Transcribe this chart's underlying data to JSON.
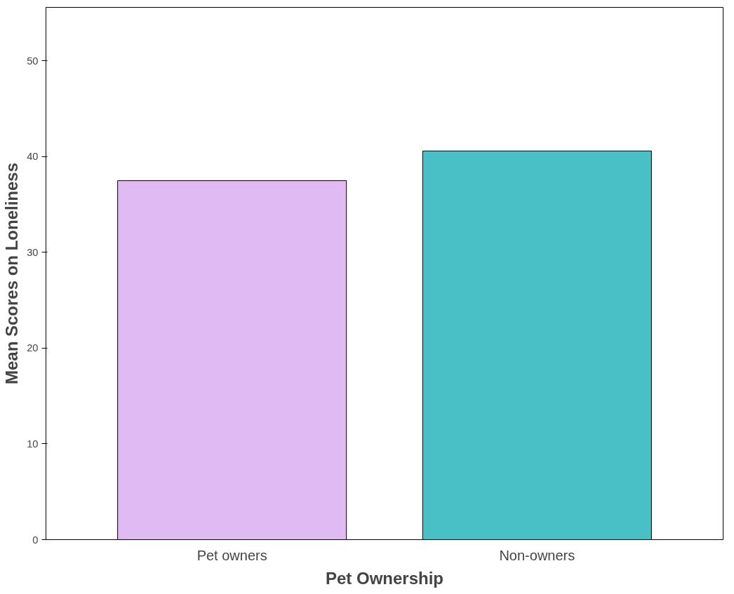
{
  "chart_data": {
    "type": "bar",
    "xlabel": "Pet Ownership",
    "ylabel": "Mean Scores on Loneliness",
    "categories": [
      "Pet owners",
      "Non-owners"
    ],
    "values": [
      37.5,
      40.6
    ],
    "colors": [
      "#dfbaf3",
      "#48c0c6"
    ],
    "ylim": [
      0,
      55.6
    ],
    "yticks": [
      0,
      10,
      20,
      30,
      40,
      50
    ],
    "grid": false
  }
}
